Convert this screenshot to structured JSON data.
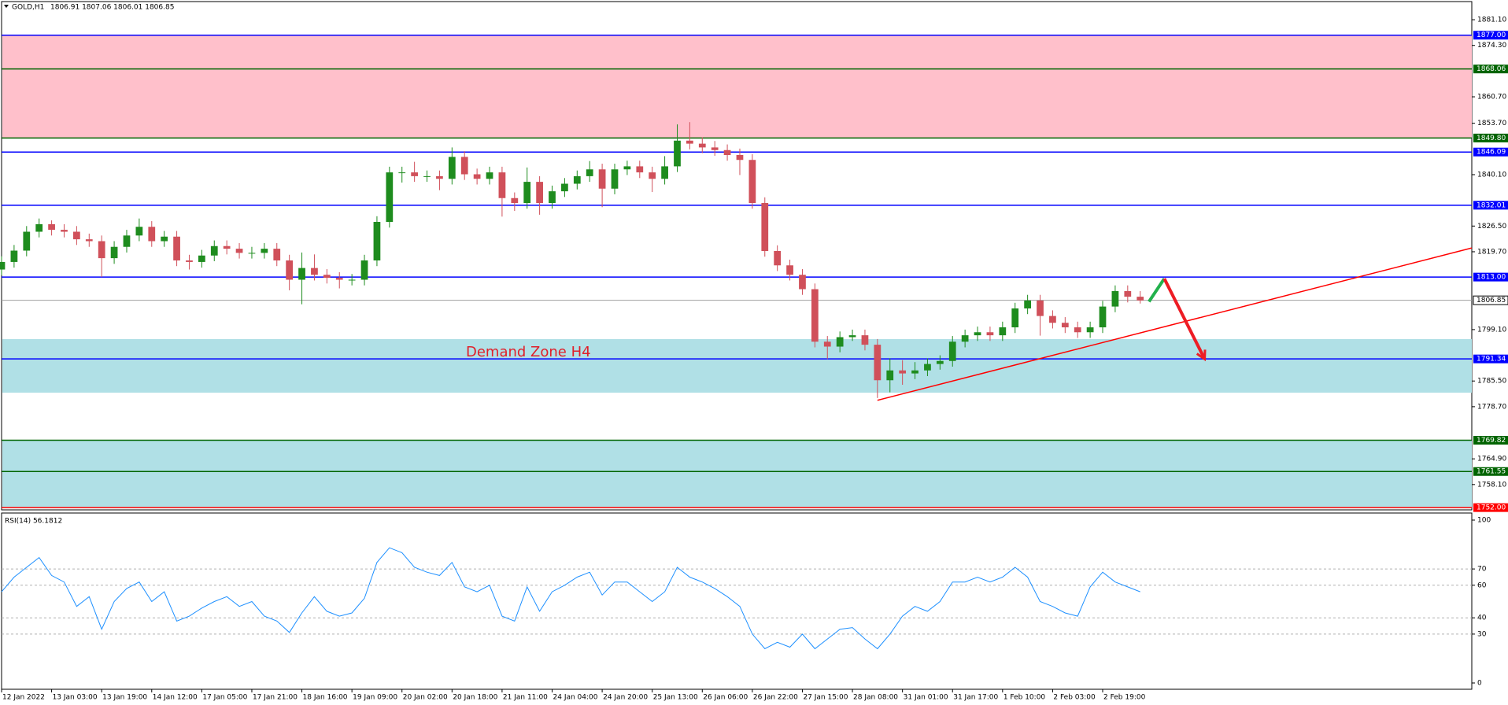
{
  "chart_data": {
    "type": "candlestick",
    "title": "GOLD,H1",
    "quote": "1806.91 1807.06 1806.01 1806.85",
    "annotation": "Demand Zone H4",
    "up_color": "#1e8c1e",
    "down_color": "#d0505a",
    "xlim": [
      0,
      470
    ],
    "ylim": [
      1751.4,
      1885.9
    ],
    "yticks": [
      {
        "value": 1881.1,
        "label": "1881.10"
      },
      {
        "value": 1874.3,
        "label": "1874.30"
      },
      {
        "value": 1860.7,
        "label": "1860.70"
      },
      {
        "value": 1853.7,
        "label": "1853.70"
      },
      {
        "value": 1840.1,
        "label": "1840.10"
      },
      {
        "value": 1826.5,
        "label": "1826.50"
      },
      {
        "value": 1819.7,
        "label": "1819.70"
      },
      {
        "value": 1799.1,
        "label": "1799.10"
      },
      {
        "value": 1785.5,
        "label": "1785.50"
      },
      {
        "value": 1778.7,
        "label": "1778.70"
      },
      {
        "value": 1764.9,
        "label": "1764.90"
      },
      {
        "value": 1758.1,
        "label": "1758.10"
      }
    ],
    "xticks": [
      {
        "value": 0,
        "label": "12 Jan 2022"
      },
      {
        "value": 16,
        "label": "13 Jan 03:00"
      },
      {
        "value": 32,
        "label": "13 Jan 19:00"
      },
      {
        "value": 48,
        "label": "14 Jan 12:00"
      },
      {
        "value": 64,
        "label": "17 Jan 05:00"
      },
      {
        "value": 80,
        "label": "17 Jan 21:00"
      },
      {
        "value": 96,
        "label": "18 Jan 16:00"
      },
      {
        "value": 112,
        "label": "19 Jan 09:00"
      },
      {
        "value": 128,
        "label": "20 Jan 02:00"
      },
      {
        "value": 144,
        "label": "20 Jan 18:00"
      },
      {
        "value": 160,
        "label": "21 Jan 11:00"
      },
      {
        "value": 176,
        "label": "24 Jan 04:00"
      },
      {
        "value": 192,
        "label": "24 Jan 20:00"
      },
      {
        "value": 208,
        "label": "25 Jan 13:00"
      },
      {
        "value": 224,
        "label": "26 Jan 06:00"
      },
      {
        "value": 240,
        "label": "26 Jan 22:00"
      },
      {
        "value": 256,
        "label": "27 Jan 15:00"
      },
      {
        "value": 272,
        "label": "28 Jan 08:00"
      },
      {
        "value": 288,
        "label": "31 Jan 01:00"
      },
      {
        "value": 304,
        "label": "31 Jan 17:00"
      },
      {
        "value": 320,
        "label": "1 Feb 10:00"
      },
      {
        "value": 336,
        "label": "2 Feb 03:00"
      },
      {
        "value": 352,
        "label": "2 Feb 19:00"
      }
    ],
    "zones": [
      {
        "low": 1849.8,
        "high": 1877,
        "color": "#ffc0cb"
      },
      {
        "low": 1782.4,
        "high": 1796.6,
        "color": "#b0e0e6"
      },
      {
        "low": 1752,
        "high": 1769.82,
        "color": "#b0e0e6"
      }
    ],
    "levels": [
      {
        "value": 1877,
        "label": "1877.00",
        "color": "#0000ff"
      },
      {
        "value": 1868.06,
        "label": "1868.06",
        "color": "#006400"
      },
      {
        "value": 1849.8,
        "label": "1849.80",
        "color": "#006400"
      },
      {
        "value": 1846.09,
        "label": "1846.09",
        "color": "#0000ff"
      },
      {
        "value": 1832.01,
        "label": "1832.01",
        "color": "#0000ff"
      },
      {
        "value": 1813,
        "label": "1813.00",
        "color": "#0000ff"
      },
      {
        "value": 1806.85,
        "label": "1806.85",
        "color": "#000000"
      },
      {
        "value": 1791.34,
        "label": "1791.34",
        "color": "#0000ff"
      },
      {
        "value": 1769.82,
        "label": "1769.82",
        "color": "#006400"
      },
      {
        "value": 1761.55,
        "label": "1761.55",
        "color": "#006400"
      },
      {
        "value": 1752,
        "label": "1752.00",
        "color": "#ff0000"
      }
    ],
    "trendline": {
      "x": [
        280,
        470
      ],
      "y": [
        1780.4,
        1820.7
      ],
      "color": "#ff0000"
    },
    "arrows": [
      {
        "x": [
          366.8,
          371.7
        ],
        "y": [
          1806.5,
          1812.6
        ],
        "color": "#22b14c"
      },
      {
        "x": [
          371.7,
          384.6
        ],
        "y": [
          1812.6,
          1791.3
        ],
        "color": "#ed1c24"
      }
    ],
    "x": [
      0,
      4,
      8,
      12,
      16,
      20,
      24,
      28,
      32,
      36,
      40,
      44,
      48,
      52,
      56,
      60,
      64,
      68,
      72,
      76,
      80,
      84,
      88,
      92,
      96,
      100,
      104,
      108,
      112,
      116,
      120,
      124,
      128,
      132,
      136,
      140,
      144,
      148,
      152,
      156,
      160,
      164,
      168,
      172,
      176,
      180,
      184,
      188,
      192,
      196,
      200,
      204,
      208,
      212,
      216,
      220,
      224,
      228,
      232,
      236,
      240,
      244,
      248,
      252,
      256,
      260,
      264,
      268,
      272,
      276,
      280,
      284,
      288,
      292,
      296,
      300,
      304,
      308,
      312,
      316,
      320,
      324,
      328,
      332,
      336,
      340,
      344,
      348,
      352,
      356,
      360,
      364
    ],
    "ohlc": [
      [
        1815.0,
        1818.5,
        1813.5,
        1817.0
      ],
      [
        1817.0,
        1821.5,
        1815.5,
        1820.0
      ],
      [
        1820.0,
        1826.5,
        1818.5,
        1825.0
      ],
      [
        1825.0,
        1828.5,
        1823.5,
        1827.0
      ],
      [
        1827.0,
        1828.0,
        1824.0,
        1825.5
      ],
      [
        1825.5,
        1827.0,
        1823.5,
        1825.0
      ],
      [
        1825.0,
        1826.5,
        1821.5,
        1823.0
      ],
      [
        1823.0,
        1824.5,
        1821.0,
        1822.5
      ],
      [
        1822.5,
        1824.0,
        1813.0,
        1818.0
      ],
      [
        1818.0,
        1822.5,
        1816.5,
        1821.0
      ],
      [
        1821.0,
        1825.5,
        1819.5,
        1824.0
      ],
      [
        1824.0,
        1828.5,
        1822.5,
        1826.3
      ],
      [
        1826.3,
        1827.8,
        1821.0,
        1822.5
      ],
      [
        1822.5,
        1825.2,
        1821.0,
        1823.7
      ],
      [
        1823.7,
        1825.2,
        1815.9,
        1817.4
      ],
      [
        1817.4,
        1818.9,
        1815.0,
        1817.0
      ],
      [
        1817.0,
        1820.2,
        1815.5,
        1818.7
      ],
      [
        1818.7,
        1822.7,
        1817.2,
        1821.2
      ],
      [
        1821.2,
        1822.7,
        1819.0,
        1820.5
      ],
      [
        1820.5,
        1822.0,
        1817.9,
        1819.4
      ],
      [
        1819.4,
        1821.0,
        1817.9,
        1819.4
      ],
      [
        1819.4,
        1822.0,
        1817.9,
        1820.5
      ],
      [
        1820.5,
        1822.0,
        1815.9,
        1817.4
      ],
      [
        1817.4,
        1818.9,
        1809.5,
        1812.3
      ],
      [
        1812.3,
        1819.5,
        1805.8,
        1815.4
      ],
      [
        1815.4,
        1819.0,
        1812.1,
        1813.6
      ],
      [
        1813.6,
        1815.1,
        1811.3,
        1812.8
      ],
      [
        1812.8,
        1814.3,
        1810.0,
        1812.3
      ],
      [
        1812.3,
        1813.8,
        1810.8,
        1812.3
      ],
      [
        1812.3,
        1818.9,
        1810.8,
        1817.4
      ],
      [
        1817.4,
        1829.1,
        1815.9,
        1827.6
      ],
      [
        1827.6,
        1842.2,
        1826.1,
        1840.7
      ],
      [
        1840.7,
        1842.2,
        1838.0,
        1840.7
      ],
      [
        1840.7,
        1843.5,
        1838.2,
        1839.7
      ],
      [
        1839.7,
        1841.2,
        1838.2,
        1839.7
      ],
      [
        1839.7,
        1841.2,
        1836.0,
        1839.0
      ],
      [
        1839.0,
        1847.3,
        1837.5,
        1844.8
      ],
      [
        1844.8,
        1846.3,
        1838.7,
        1840.2
      ],
      [
        1840.2,
        1841.7,
        1837.5,
        1839.0
      ],
      [
        1839.0,
        1842.2,
        1837.5,
        1840.7
      ],
      [
        1840.7,
        1842.2,
        1829.0,
        1833.9
      ],
      [
        1833.9,
        1835.4,
        1830.5,
        1832.6
      ],
      [
        1832.6,
        1842.0,
        1831.1,
        1838.2
      ],
      [
        1838.2,
        1839.7,
        1829.5,
        1832.6
      ],
      [
        1832.6,
        1837.2,
        1831.1,
        1835.7
      ],
      [
        1835.7,
        1839.2,
        1834.2,
        1837.7
      ],
      [
        1837.7,
        1841.2,
        1836.2,
        1839.7
      ],
      [
        1839.7,
        1843.7,
        1838.2,
        1841.5
      ],
      [
        1841.5,
        1843.0,
        1831.5,
        1836.4
      ],
      [
        1836.4,
        1843.0,
        1834.9,
        1841.5
      ],
      [
        1841.5,
        1843.8,
        1840.0,
        1842.3
      ],
      [
        1842.3,
        1843.8,
        1839.2,
        1840.7
      ],
      [
        1840.7,
        1842.2,
        1835.5,
        1839.0
      ],
      [
        1839.0,
        1845.0,
        1837.5,
        1842.3
      ],
      [
        1842.3,
        1853.4,
        1840.8,
        1849.1
      ],
      [
        1849.1,
        1854.0,
        1846.8,
        1848.3
      ],
      [
        1848.3,
        1850.0,
        1845.8,
        1847.3
      ],
      [
        1847.3,
        1849.0,
        1845.1,
        1846.6
      ],
      [
        1846.6,
        1848.1,
        1843.8,
        1845.3
      ],
      [
        1845.3,
        1847.0,
        1840.0,
        1844.0
      ],
      [
        1844.0,
        1845.5,
        1831.1,
        1832.6
      ],
      [
        1832.6,
        1834.1,
        1818.4,
        1819.9
      ],
      [
        1819.9,
        1821.4,
        1814.6,
        1816.1
      ],
      [
        1816.1,
        1817.6,
        1812.1,
        1813.6
      ],
      [
        1813.6,
        1815.1,
        1808.3,
        1809.8
      ],
      [
        1809.8,
        1811.3,
        1794.4,
        1795.9
      ],
      [
        1795.9,
        1797.4,
        1791.3,
        1794.6
      ],
      [
        1794.6,
        1798.6,
        1793.1,
        1797.1
      ],
      [
        1797.1,
        1799.1,
        1796.1,
        1797.6
      ],
      [
        1797.6,
        1799.1,
        1793.6,
        1795.1
      ],
      [
        1795.1,
        1796.6,
        1781.0,
        1785.7
      ],
      [
        1785.7,
        1791.5,
        1782.5,
        1788.3
      ],
      [
        1788.3,
        1791.0,
        1784.5,
        1787.5
      ],
      [
        1787.5,
        1790.5,
        1786.0,
        1788.3
      ],
      [
        1788.3,
        1791.5,
        1786.8,
        1790.0
      ],
      [
        1790.0,
        1792.3,
        1788.5,
        1790.8
      ],
      [
        1790.8,
        1797.4,
        1789.3,
        1795.9
      ],
      [
        1795.9,
        1799.1,
        1794.4,
        1797.6
      ],
      [
        1797.6,
        1799.9,
        1796.1,
        1798.4
      ],
      [
        1798.4,
        1799.9,
        1796.1,
        1797.6
      ],
      [
        1797.6,
        1801.2,
        1796.1,
        1799.7
      ],
      [
        1799.7,
        1806.2,
        1798.2,
        1804.7
      ],
      [
        1804.7,
        1808.3,
        1803.2,
        1806.8
      ],
      [
        1806.8,
        1808.3,
        1797.5,
        1802.7
      ],
      [
        1802.7,
        1804.2,
        1799.4,
        1800.9
      ],
      [
        1800.9,
        1802.4,
        1798.2,
        1799.7
      ],
      [
        1799.7,
        1801.2,
        1796.9,
        1798.4
      ],
      [
        1798.4,
        1801.2,
        1796.9,
        1799.7
      ],
      [
        1799.7,
        1806.7,
        1798.2,
        1805.2
      ],
      [
        1805.2,
        1810.8,
        1803.7,
        1809.3
      ],
      [
        1809.3,
        1810.8,
        1806.3,
        1807.8
      ],
      [
        1807.8,
        1809.3,
        1806.0,
        1806.8
      ]
    ],
    "rsi": {
      "label": "RSI(14) 56.1812",
      "color": "#1e90ff",
      "ylim": [
        0,
        100
      ],
      "yticks": [
        0,
        30,
        40,
        60,
        70,
        100
      ],
      "values": [
        56,
        65,
        71,
        77,
        66,
        62,
        47,
        53,
        33,
        50,
        58,
        62,
        50,
        56,
        38,
        41,
        46,
        50,
        53,
        47,
        50,
        41,
        38,
        31,
        43,
        53,
        44,
        41,
        43,
        52,
        74,
        83,
        80,
        71,
        68,
        66,
        74,
        59,
        56,
        60,
        41,
        38,
        59,
        44,
        56,
        60,
        65,
        68,
        54,
        62,
        62,
        56,
        50,
        56,
        71,
        65,
        62,
        58,
        53,
        47,
        30,
        21,
        25,
        22,
        30,
        21,
        27,
        33,
        34,
        27,
        21,
        30,
        41,
        47,
        44,
        50,
        62,
        62,
        65,
        62,
        65,
        71,
        65,
        50,
        47,
        43,
        41,
        59,
        68,
        62,
        59,
        56
      ]
    }
  }
}
